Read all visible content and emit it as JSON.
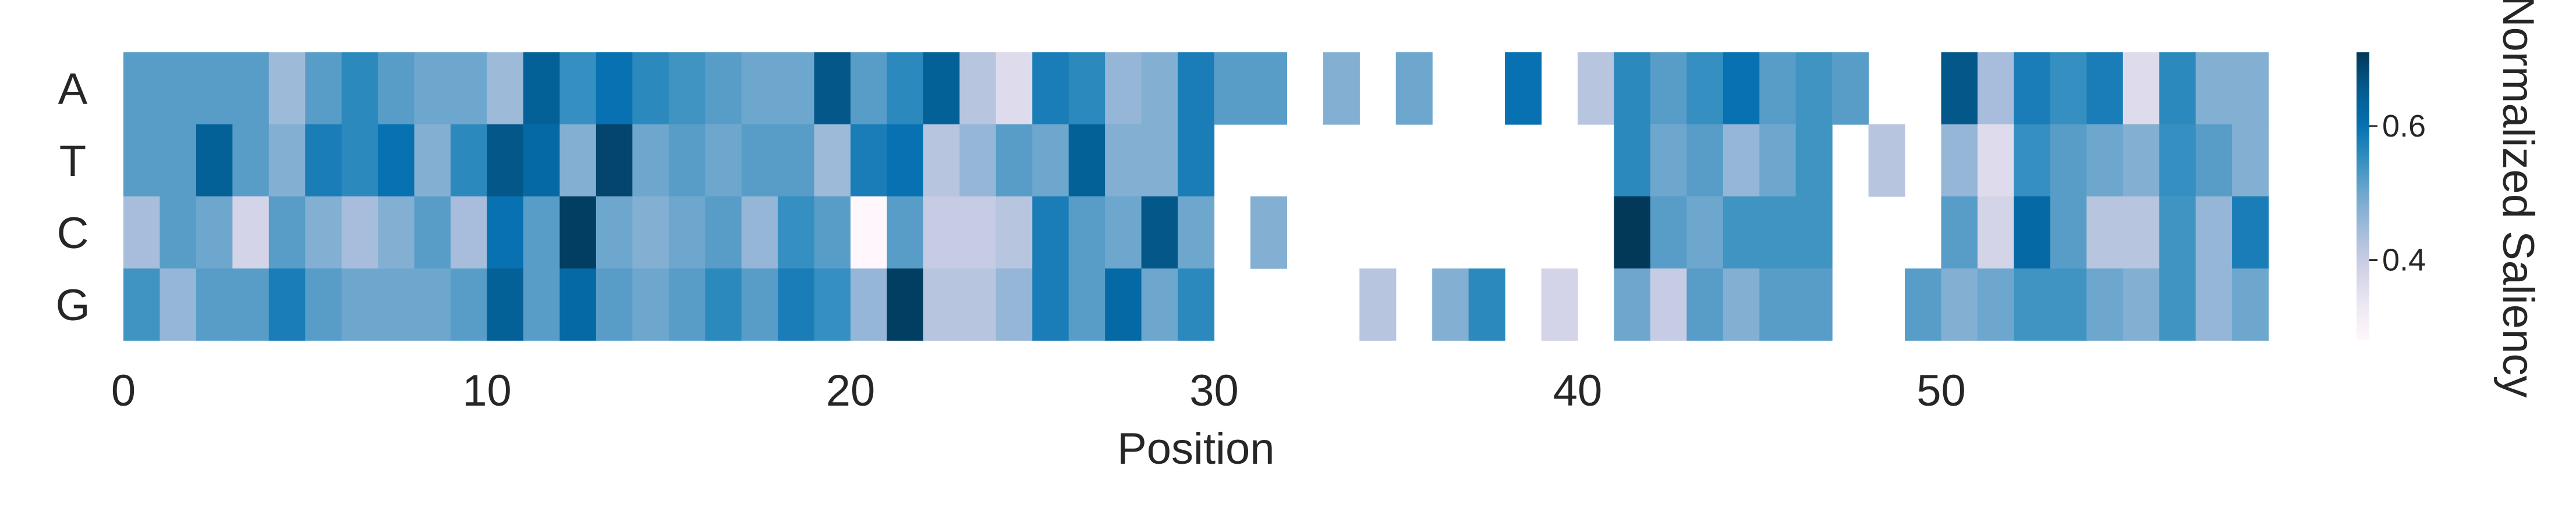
{
  "chart_data": {
    "type": "heatmap",
    "title": "",
    "xlabel": "Position",
    "ylabel": "",
    "rows": [
      "A",
      "T",
      "C",
      "G"
    ],
    "x_ticks": [
      "0",
      "10",
      "20",
      "30",
      "40",
      "50"
    ],
    "x_tick_values": [
      0,
      10,
      20,
      30,
      40,
      50
    ],
    "n_positions": 59,
    "colorbar": {
      "label": "Normalized Saliency",
      "ticks": [
        "0.4",
        "0.6"
      ],
      "tick_values": [
        0.4,
        0.6
      ],
      "range": [
        0.28,
        0.71
      ],
      "colormap": "PuBu",
      "colors": [
        "#fff7fb",
        "#ece7f2",
        "#d0d1e6",
        "#a6bddb",
        "#74a9cf",
        "#3690c0",
        "#0570b0",
        "#045a8d",
        "#023858"
      ]
    },
    "values": [
      [
        0.52,
        0.52,
        0.52,
        0.52,
        0.45,
        0.52,
        0.56,
        0.52,
        0.5,
        0.5,
        0.45,
        0.64,
        0.55,
        0.6,
        0.56,
        0.54,
        0.52,
        0.5,
        0.5,
        0.66,
        0.52,
        0.56,
        0.64,
        0.42,
        0.36,
        0.58,
        0.56,
        0.46,
        0.48,
        0.58,
        0.52,
        0.52,
        null,
        0.48,
        null,
        0.5,
        null,
        null,
        0.6,
        null,
        0.42,
        0.56,
        0.52,
        0.55,
        0.6,
        0.52,
        0.54,
        0.52,
        null,
        null,
        0.66,
        0.44,
        0.58,
        0.55,
        0.58,
        0.36,
        0.56,
        0.48,
        0.48
      ],
      [
        0.52,
        0.52,
        0.64,
        0.52,
        0.48,
        0.58,
        0.56,
        0.6,
        0.48,
        0.56,
        0.66,
        0.62,
        0.48,
        0.69,
        0.5,
        0.52,
        0.5,
        0.52,
        0.52,
        0.45,
        0.58,
        0.6,
        0.42,
        0.46,
        0.52,
        0.5,
        0.64,
        0.48,
        0.48,
        0.58,
        null,
        null,
        null,
        null,
        null,
        null,
        null,
        null,
        null,
        null,
        null,
        0.56,
        0.5,
        0.52,
        0.46,
        0.5,
        0.54,
        null,
        0.42,
        null,
        0.46,
        0.36,
        0.55,
        0.52,
        0.5,
        0.48,
        0.55,
        0.52,
        0.48
      ],
      [
        0.44,
        0.52,
        0.5,
        0.38,
        0.52,
        0.48,
        0.44,
        0.48,
        0.52,
        0.44,
        0.6,
        0.52,
        0.7,
        0.5,
        0.48,
        0.5,
        0.52,
        0.46,
        0.55,
        0.52,
        0.28,
        0.52,
        0.4,
        0.4,
        0.42,
        0.58,
        0.52,
        0.5,
        0.66,
        0.5,
        null,
        0.48,
        null,
        null,
        null,
        null,
        null,
        null,
        null,
        null,
        null,
        0.72,
        0.52,
        0.5,
        0.54,
        0.54,
        0.54,
        null,
        null,
        null,
        0.52,
        0.38,
        0.62,
        0.52,
        0.42,
        0.42,
        0.54,
        0.46,
        0.58
      ],
      [
        0.54,
        0.46,
        0.52,
        0.52,
        0.58,
        0.52,
        0.5,
        0.5,
        0.5,
        0.52,
        0.64,
        0.52,
        0.62,
        0.52,
        0.5,
        0.52,
        0.56,
        0.52,
        0.58,
        0.55,
        0.46,
        0.7,
        0.42,
        0.42,
        0.46,
        0.58,
        0.52,
        0.62,
        0.5,
        0.56,
        null,
        null,
        null,
        null,
        0.42,
        null,
        0.48,
        0.56,
        null,
        0.38,
        null,
        0.5,
        0.4,
        0.52,
        0.48,
        0.52,
        0.52,
        null,
        null,
        0.52,
        0.48,
        0.5,
        0.54,
        0.54,
        0.5,
        0.48,
        0.54,
        0.46,
        0.5
      ]
    ]
  }
}
